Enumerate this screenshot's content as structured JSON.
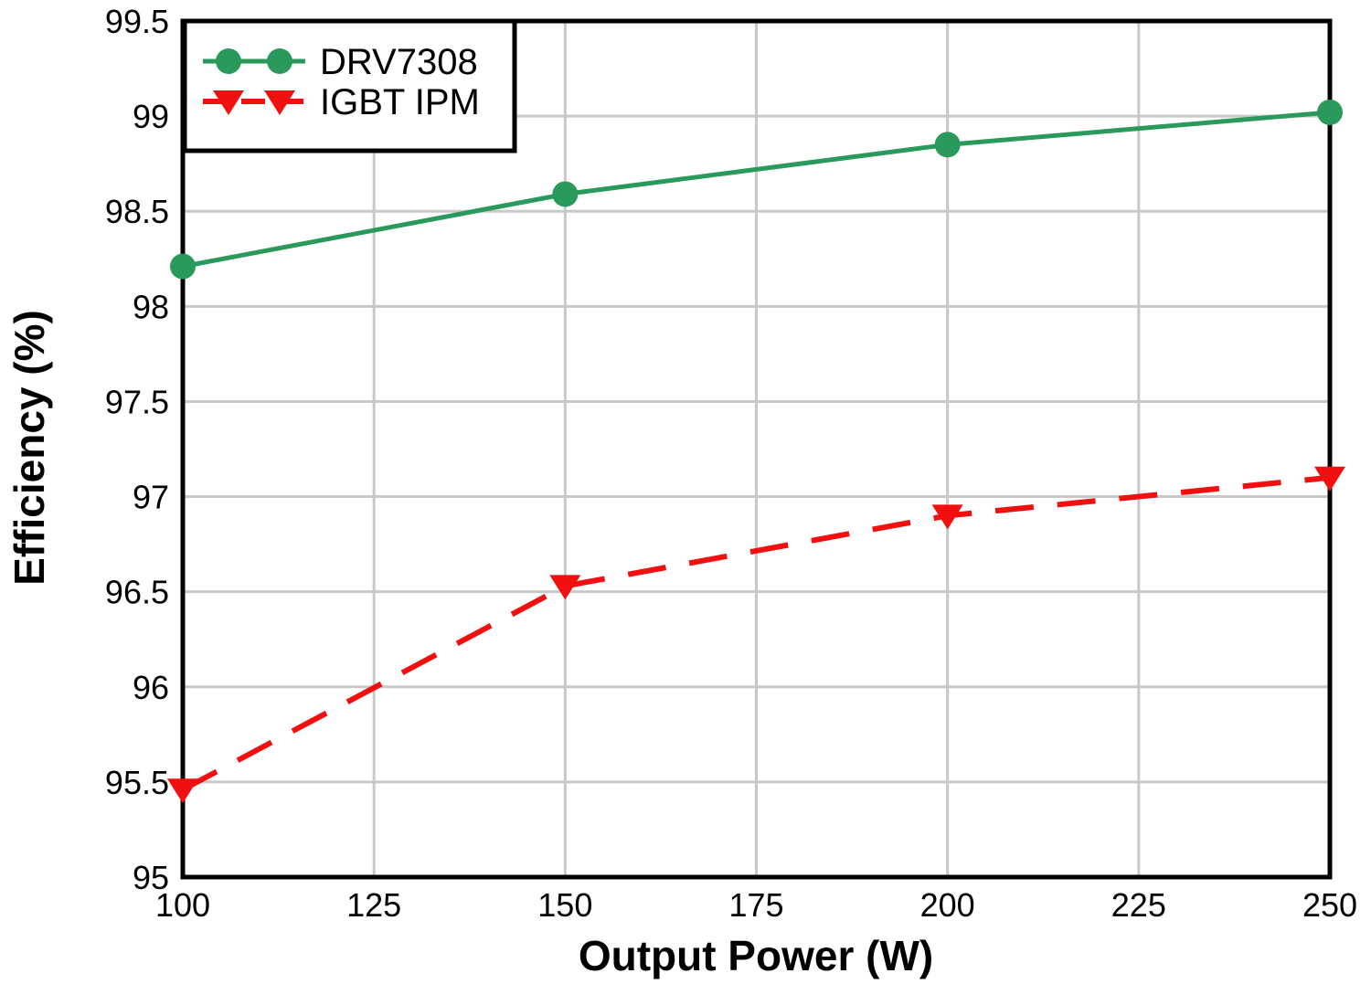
{
  "figure": {
    "background_color": "#ffffff",
    "grid_color": "#c8c8c8",
    "axis_color": "#000000",
    "text_color": "#000000"
  },
  "chart_data": {
    "type": "line",
    "title": "",
    "xlabel": "Output Power (W)",
    "ylabel": "Efficiency (%)",
    "xlim": [
      100,
      250
    ],
    "ylim": [
      95,
      99.5
    ],
    "x_ticks": [
      100,
      125,
      150,
      175,
      200,
      225,
      250
    ],
    "y_ticks": [
      95,
      95.5,
      96,
      96.5,
      97,
      97.5,
      98,
      98.5,
      99,
      99.5
    ],
    "grid": true,
    "legend_position": "top-left",
    "x": [
      100,
      150,
      200,
      250
    ],
    "series": [
      {
        "name": "DRV7308",
        "values": [
          98.21,
          98.59,
          98.85,
          99.02
        ],
        "color": "#2a9a5c",
        "line_style": "solid",
        "marker": "circle"
      },
      {
        "name": "IGBT IPM",
        "values": [
          95.46,
          96.53,
          96.9,
          97.1
        ],
        "color": "#f20f0f",
        "line_style": "dashed",
        "marker": "triangle-down"
      }
    ]
  }
}
